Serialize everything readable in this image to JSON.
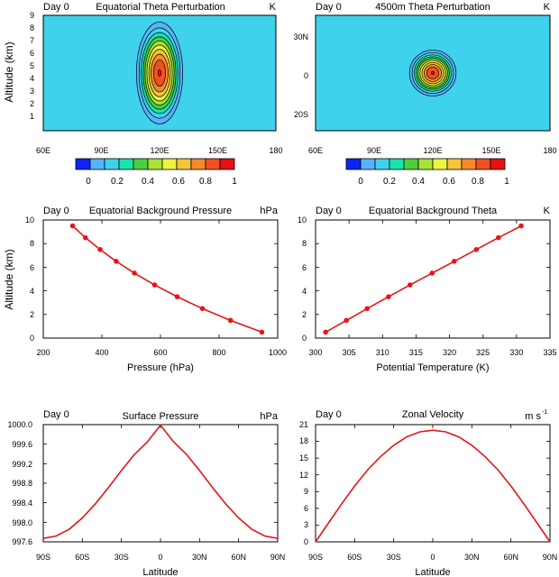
{
  "chart_data": [
    {
      "id": "equatorial_theta_perturbation",
      "type": "contour",
      "day_label": "Day 0",
      "title": "Equatorial Theta Perturbation",
      "units": "K",
      "xlabel": "",
      "ylabel": "Altitude (km)",
      "x_ticks": [
        "60E",
        "90E",
        "120E",
        "150E",
        "180"
      ],
      "x_range": [
        60,
        180
      ],
      "y_ticks": [
        "1",
        "2",
        "3",
        "4",
        "5",
        "6",
        "7",
        "8",
        "9"
      ],
      "y_range": [
        0.5,
        9.5
      ],
      "perturbation": {
        "center_lon": 120,
        "center_alt_km": 5,
        "lon_half_width_deg": 15,
        "alt_half_width_km": 5,
        "max_K": 1.0
      },
      "colorbar": {
        "levels": [
          0.1,
          0.2,
          0.3,
          0.4,
          0.5,
          0.6,
          0.7,
          0.8,
          0.9,
          1.0
        ],
        "labels": [
          "0",
          "0.2",
          "0.4",
          "0.6",
          "0.8",
          "1"
        ],
        "colors": [
          "#0b24fb",
          "#58b3ff",
          "#3fd2ec",
          "#19e4ad",
          "#4dce3d",
          "#a8e33b",
          "#ecf341",
          "#f6c43a",
          "#f38a2b",
          "#f0501f",
          "#e91013"
        ]
      }
    },
    {
      "id": "theta_perturbation_4500m",
      "type": "contour",
      "day_label": "Day 0",
      "title": "4500m Theta Perturbation",
      "units": "K",
      "xlabel": "",
      "ylabel": "",
      "x_ticks": [
        "60E",
        "90E",
        "120E",
        "150E",
        "180"
      ],
      "x_range": [
        60,
        180
      ],
      "y_ticks": [
        "30N",
        "0",
        "20S"
      ],
      "y_range": [
        -30,
        30
      ],
      "perturbation": {
        "center_lon": 120,
        "center_lat": 0,
        "radius_deg": 15,
        "max_K": 1.0
      },
      "colorbar": {
        "levels": [
          0.1,
          0.2,
          0.3,
          0.4,
          0.5,
          0.6,
          0.7,
          0.8,
          0.9,
          1.0
        ],
        "labels": [
          "0",
          "0.2",
          "0.4",
          "0.6",
          "0.8",
          "1"
        ],
        "colors": [
          "#0b24fb",
          "#58b3ff",
          "#3fd2ec",
          "#19e4ad",
          "#4dce3d",
          "#a8e33b",
          "#ecf341",
          "#f6c43a",
          "#f38a2b",
          "#f0501f",
          "#e91013"
        ]
      }
    },
    {
      "id": "equatorial_background_pressure",
      "type": "line",
      "day_label": "Day 0",
      "title": "Equatorial Background Pressure",
      "units": "hPa",
      "xlabel": "Pressure (hPa)",
      "ylabel": "Altitude (km)",
      "x_ticks": [
        "200",
        "400",
        "600",
        "800",
        "1000"
      ],
      "x_range": [
        200,
        1000
      ],
      "y_ticks": [
        "0",
        "2",
        "4",
        "6",
        "8",
        "10"
      ],
      "y_range": [
        0,
        10
      ],
      "series": [
        {
          "name": "pressure",
          "color": "#e8141a",
          "x": [
            946,
            839,
            743,
            657,
            580,
            511,
            449,
            394,
            344,
            300
          ],
          "y": [
            0.5,
            1.5,
            2.5,
            3.5,
            4.5,
            5.5,
            6.5,
            7.5,
            8.5,
            9.5
          ]
        }
      ]
    },
    {
      "id": "equatorial_background_theta",
      "type": "line",
      "day_label": "Day 0",
      "title": "Equatorial Background Theta",
      "units": "K",
      "xlabel": "Potential Temperature (K)",
      "ylabel": "",
      "x_ticks": [
        "300",
        "305",
        "310",
        "315",
        "320",
        "325",
        "330",
        "335"
      ],
      "x_range": [
        300,
        335
      ],
      "y_ticks": [
        "0",
        "2",
        "4",
        "6",
        "8",
        "10"
      ],
      "y_range": [
        0,
        10
      ],
      "series": [
        {
          "name": "theta",
          "color": "#e8141a",
          "x": [
            301.5,
            304.6,
            307.7,
            310.9,
            314.1,
            317.4,
            320.7,
            324.0,
            327.3,
            330.7
          ],
          "y": [
            0.5,
            1.5,
            2.5,
            3.5,
            4.5,
            5.5,
            6.5,
            7.5,
            8.5,
            9.5
          ]
        }
      ]
    },
    {
      "id": "surface_pressure",
      "type": "line",
      "day_label": "Day 0",
      "title": "Surface Pressure",
      "units": "hPa",
      "xlabel": "Latitude",
      "ylabel": "",
      "x_ticks": [
        "90S",
        "60S",
        "30S",
        "0",
        "30N",
        "60N",
        "90N"
      ],
      "x_range": [
        -90,
        90
      ],
      "y_ticks": [
        "997.6",
        "998.0",
        "998.4",
        "998.8",
        "999.2",
        "999.6",
        "1000.0"
      ],
      "y_range": [
        997.6,
        1000.0
      ],
      "series": [
        {
          "name": "surface pressure",
          "color": "#e8141a",
          "x": [
            -90,
            -80,
            -70,
            -60,
            -50,
            -40,
            -30,
            -20,
            -10,
            0,
            10,
            20,
            30,
            40,
            50,
            60,
            70,
            80,
            90
          ],
          "y": [
            997.67,
            997.72,
            997.86,
            998.09,
            998.38,
            998.71,
            999.06,
            999.39,
            999.65,
            999.99,
            999.65,
            999.39,
            999.06,
            998.71,
            998.38,
            998.09,
            997.86,
            997.72,
            997.67
          ]
        }
      ]
    },
    {
      "id": "zonal_velocity",
      "type": "line",
      "day_label": "Day 0",
      "title": "Zonal Velocity",
      "units": "m s",
      "units_superscript": "-1",
      "xlabel": "Latitude",
      "ylabel": "",
      "x_ticks": [
        "90S",
        "60S",
        "30S",
        "0",
        "30N",
        "60N",
        "90N"
      ],
      "x_range": [
        -90,
        90
      ],
      "y_ticks": [
        "0",
        "3",
        "6",
        "9",
        "12",
        "15",
        "18",
        "21"
      ],
      "y_range": [
        0,
        21
      ],
      "series": [
        {
          "name": "zonal velocity",
          "color": "#e8141a",
          "x": [
            -90,
            -80,
            -70,
            -60,
            -50,
            -40,
            -30,
            -20,
            -10,
            0,
            10,
            20,
            30,
            40,
            50,
            60,
            70,
            80,
            90
          ],
          "y": [
            0.0,
            3.4,
            6.8,
            10.0,
            12.9,
            15.3,
            17.3,
            18.8,
            19.7,
            20.0,
            19.7,
            18.8,
            17.3,
            15.3,
            12.9,
            10.0,
            6.8,
            3.4,
            0.0
          ]
        }
      ]
    }
  ]
}
